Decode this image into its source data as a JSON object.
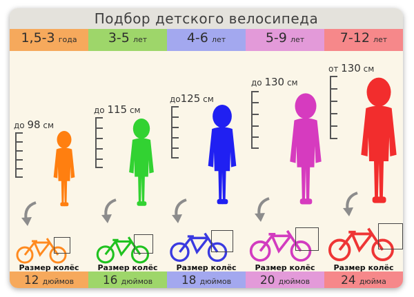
{
  "title": "Подбор детского велосипеда",
  "columns": [
    {
      "age_num": "1,5-3",
      "age_unit": "года",
      "height_prefix": "до",
      "height_num": "98",
      "height_unit": "см",
      "wheel_label": "Размер колёс",
      "size_num": "12",
      "size_unit": "дюймов",
      "band_color": "#f6a95c",
      "child_color": "#ff7f10",
      "bike_color": "#ff8a1f"
    },
    {
      "age_num": "3-5",
      "age_unit": "лет",
      "height_prefix": "до",
      "height_num": "115",
      "height_unit": "см",
      "wheel_label": "Размер колёс",
      "size_num": "16",
      "size_unit": "дюймов",
      "band_color": "#9ed66a",
      "child_color": "#32d232",
      "bike_color": "#1fc21f"
    },
    {
      "age_num": "4-6",
      "age_unit": "лет",
      "height_prefix": "до",
      "height_num": "125",
      "height_unit": "см",
      "wheel_label": "Размер колёс",
      "size_num": "18",
      "size_unit": "дюймов",
      "band_color": "#a3a8ef",
      "child_color": "#2020f2",
      "bike_color": "#3a3ae0"
    },
    {
      "age_num": "5-9",
      "age_unit": "лет",
      "height_prefix": "до",
      "height_num": "130",
      "height_unit": "см",
      "wheel_label": "Размер колёс",
      "size_num": "20",
      "size_unit": "дюймов",
      "band_color": "#e39ad9",
      "child_color": "#d63bbf",
      "bike_color": "#d23bbf"
    },
    {
      "age_num": "7-12",
      "age_unit": "лет",
      "height_prefix": "от",
      "height_num": "130",
      "height_unit": "см",
      "wheel_label": "Размер колёс",
      "size_num": "24",
      "size_unit": "дюйма",
      "band_color": "#f6888a",
      "child_color": "#f22d2d",
      "bike_color": "#ee3535"
    }
  ]
}
